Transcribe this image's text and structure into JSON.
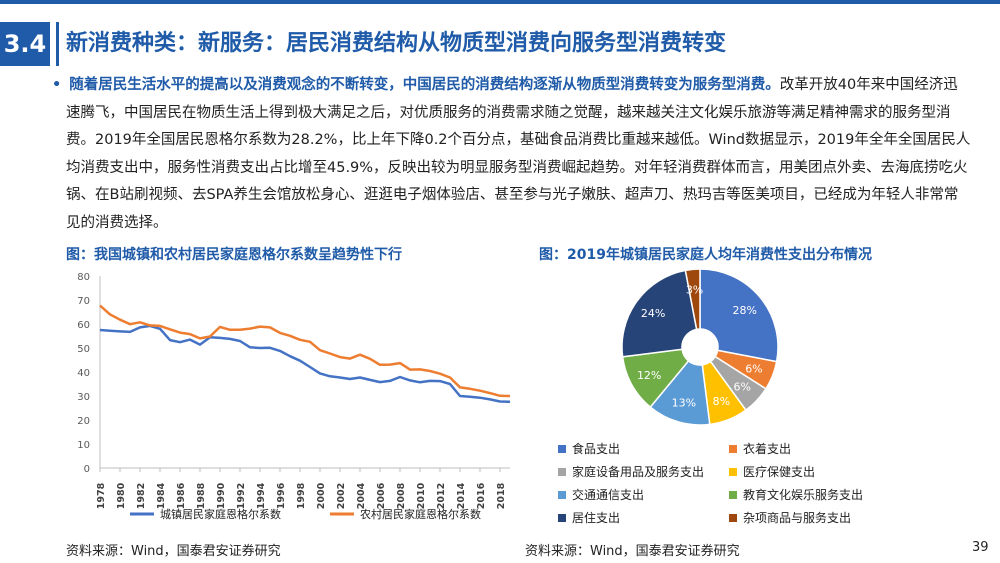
{
  "header": {
    "section_number": "3.4",
    "title": "新消费种类：新服务：居民消费结构从物质型消费向服务型消费转变"
  },
  "body": {
    "bullet": "•",
    "lead": "随着居民生活水平的提高以及消费观念的不断转变，中国居民的消费结构逐渐从物质型消费转变为服务型消费。",
    "text": "改革开放40年来中国经济迅速腾飞，中国居民在物质生活上得到极大满足之后，对优质服务的消费需求随之觉醒，越来越关注文化娱乐旅游等满足精神需求的服务型消费。2019年全国居民恩格尔系数为28.2%，比上年下降0.2个百分点，基础食品消费比重越来越低。Wind数据显示，2019年全年全国居民人均消费支出中，服务性消费支出占比增至45.9%，反映出较为明显服务型消费崛起趋势。对年轻消费群体而言，用美团点外卖、去海底捞吃火锅、在B站刷视频、去SPA养生会馆放松身心、逛逛电子烟体验店、甚至参与光子嫩肤、超声刀、热玛吉等医美项目，已经成为年轻人非常常见的消费选择。"
  },
  "figures": {
    "left_title": "图：我国城镇和农村居民家庭恩格尔系数呈趋势性下行",
    "right_title": "图：2019年城镇居民家庭人均年消费性支出分布情况",
    "left_source": "资料来源：Wind，国泰君安证券研究",
    "right_source": "资料来源：Wind，国泰君安证券研究"
  },
  "page_number": "39",
  "colors": {
    "brand": "#1f5ba8",
    "urban": "#4472c4",
    "rural": "#ed7d31"
  },
  "chart_data": [
    {
      "type": "line",
      "title": "图：我国城镇和农村居民家庭恩格尔系数呈趋势性下行",
      "x": [
        1978,
        1979,
        1980,
        1981,
        1982,
        1983,
        1984,
        1985,
        1986,
        1987,
        1988,
        1989,
        1990,
        1991,
        1992,
        1993,
        1994,
        1995,
        1996,
        1997,
        1998,
        1999,
        2000,
        2001,
        2002,
        2003,
        2004,
        2005,
        2006,
        2007,
        2008,
        2009,
        2010,
        2011,
        2012,
        2013,
        2014,
        2015,
        2016,
        2017,
        2018,
        2019
      ],
      "x_tick_labels": [
        "1978",
        "1980",
        "1982",
        "1984",
        "1986",
        "1988",
        "1990",
        "1992",
        "1994",
        "1996",
        "1998",
        "2000",
        "2002",
        "2004",
        "2006",
        "2008",
        "2010",
        "2012",
        "2014",
        "2016",
        "2018"
      ],
      "ylim": [
        0,
        80
      ],
      "y_ticks": [
        0,
        10,
        20,
        30,
        40,
        50,
        60,
        70,
        80
      ],
      "grid": false,
      "legend_position": "bottom",
      "series": [
        {
          "name": "城镇居民家庭恩格尔系数",
          "color": "#4472c4",
          "values": [
            57.5,
            57.2,
            56.9,
            56.7,
            58.6,
            59.2,
            58.0,
            53.3,
            52.4,
            53.5,
            51.4,
            54.5,
            54.2,
            53.8,
            52.9,
            50.3,
            50.0,
            50.1,
            48.8,
            46.6,
            44.7,
            42.1,
            39.4,
            38.2,
            37.7,
            37.1,
            37.7,
            36.7,
            35.8,
            36.3,
            37.9,
            36.5,
            35.7,
            36.3,
            36.2,
            35.0,
            30.0,
            29.7,
            29.3,
            28.6,
            27.7,
            27.6
          ]
        },
        {
          "name": "农村居民家庭恩格尔系数",
          "color": "#ed7d31",
          "values": [
            67.7,
            64.0,
            61.8,
            59.9,
            60.7,
            59.4,
            59.2,
            57.8,
            56.4,
            55.8,
            54.0,
            54.8,
            58.8,
            57.6,
            57.6,
            58.1,
            58.9,
            58.6,
            56.3,
            55.1,
            53.4,
            52.6,
            49.1,
            47.7,
            46.2,
            45.6,
            47.2,
            45.5,
            43.0,
            43.1,
            43.7,
            41.0,
            41.1,
            40.4,
            39.3,
            37.7,
            33.6,
            33.0,
            32.2,
            31.2,
            30.1,
            30.0
          ]
        }
      ]
    },
    {
      "type": "pie",
      "title": "图：2019年城镇居民家庭人均年消费性支出分布情况",
      "donut": true,
      "legend_position": "bottom",
      "slices": [
        {
          "label": "食品支出",
          "value": 28,
          "display": "28%",
          "color": "#4472c4"
        },
        {
          "label": "衣着支出",
          "value": 6,
          "display": "6%",
          "color": "#ed7d31"
        },
        {
          "label": "家庭设备用品及服务支出",
          "value": 6,
          "display": "6%",
          "color": "#a5a5a5"
        },
        {
          "label": "医疗保健支出",
          "value": 8,
          "display": "8%",
          "color": "#ffc000"
        },
        {
          "label": "交通通信支出",
          "value": 13,
          "display": "13%",
          "color": "#5b9bd5"
        },
        {
          "label": "教育文化娱乐服务支出",
          "value": 12,
          "display": "12%",
          "color": "#70ad47"
        },
        {
          "label": "居住支出",
          "value": 24,
          "display": "24%",
          "color": "#264478"
        },
        {
          "label": "杂项商品与服务支出",
          "value": 3,
          "display": "3%",
          "color": "#9e480e"
        }
      ]
    }
  ]
}
